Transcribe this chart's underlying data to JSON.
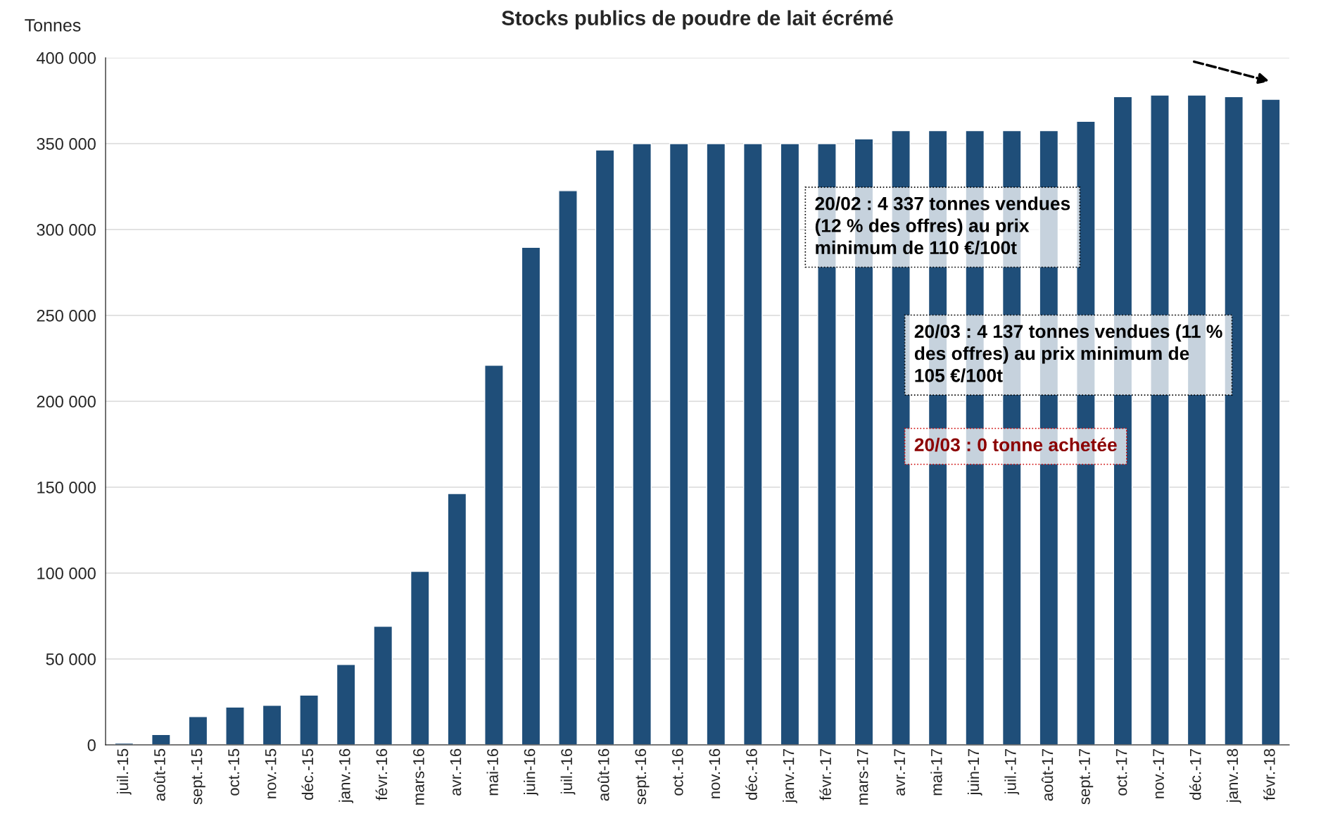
{
  "chart_data": {
    "type": "bar",
    "title": "Stocks publics de poudre de lait écrémé",
    "ylabel": "Tonnes",
    "categories": [
      "juil.-15",
      "août-15",
      "sept.-15",
      "oct.-15",
      "nov.-15",
      "déc.-15",
      "janv.-16",
      "févr.-16",
      "mars-16",
      "avr.-16",
      "mai-16",
      "juin-16",
      "juil.-16",
      "août-16",
      "sept.-16",
      "oct.-16",
      "nov.-16",
      "déc.-16",
      "janv.-17",
      "févr.-17",
      "mars-17",
      "avr.-17",
      "mai-17",
      "juin-17",
      "juil.-17",
      "août-17",
      "sept.-17",
      "oct.-17",
      "nov.-17",
      "déc.-17",
      "janv.-18",
      "févr.-18"
    ],
    "values": [
      1000,
      6000,
      16500,
      22000,
      23000,
      29000,
      46800,
      69000,
      101000,
      146300,
      221000,
      289600,
      322600,
      346300,
      350000,
      350000,
      350000,
      350000,
      350000,
      350000,
      352700,
      357600,
      357600,
      357600,
      357600,
      357600,
      363000,
      377300,
      378300,
      378300,
      377300,
      375800
    ],
    "color": "#1f4e79",
    "ylim": [
      0,
      400000
    ],
    "yticks": [
      {
        "value": 0,
        "label": "0"
      },
      {
        "value": 50000,
        "label": "50 000"
      },
      {
        "value": 100000,
        "label": "100 000"
      },
      {
        "value": 150000,
        "label": "150 000"
      },
      {
        "value": 200000,
        "label": "200 000"
      },
      {
        "value": 250000,
        "label": "250 000"
      },
      {
        "value": 300000,
        "label": "300 000"
      },
      {
        "value": 350000,
        "label": "350 000"
      },
      {
        "value": 400000,
        "label": "400 000"
      }
    ],
    "grid": "y",
    "annotations": [
      "20/02 : 4 337 tonnes vendues\n(12 % des offres) au prix\nminimum de 110 €/100t",
      "20/03 : 4 137 tonnes vendues (11 %\ndes offres) au prix minimum de\n105 €/100t",
      "20/03 : 0 tonne achetée"
    ]
  }
}
